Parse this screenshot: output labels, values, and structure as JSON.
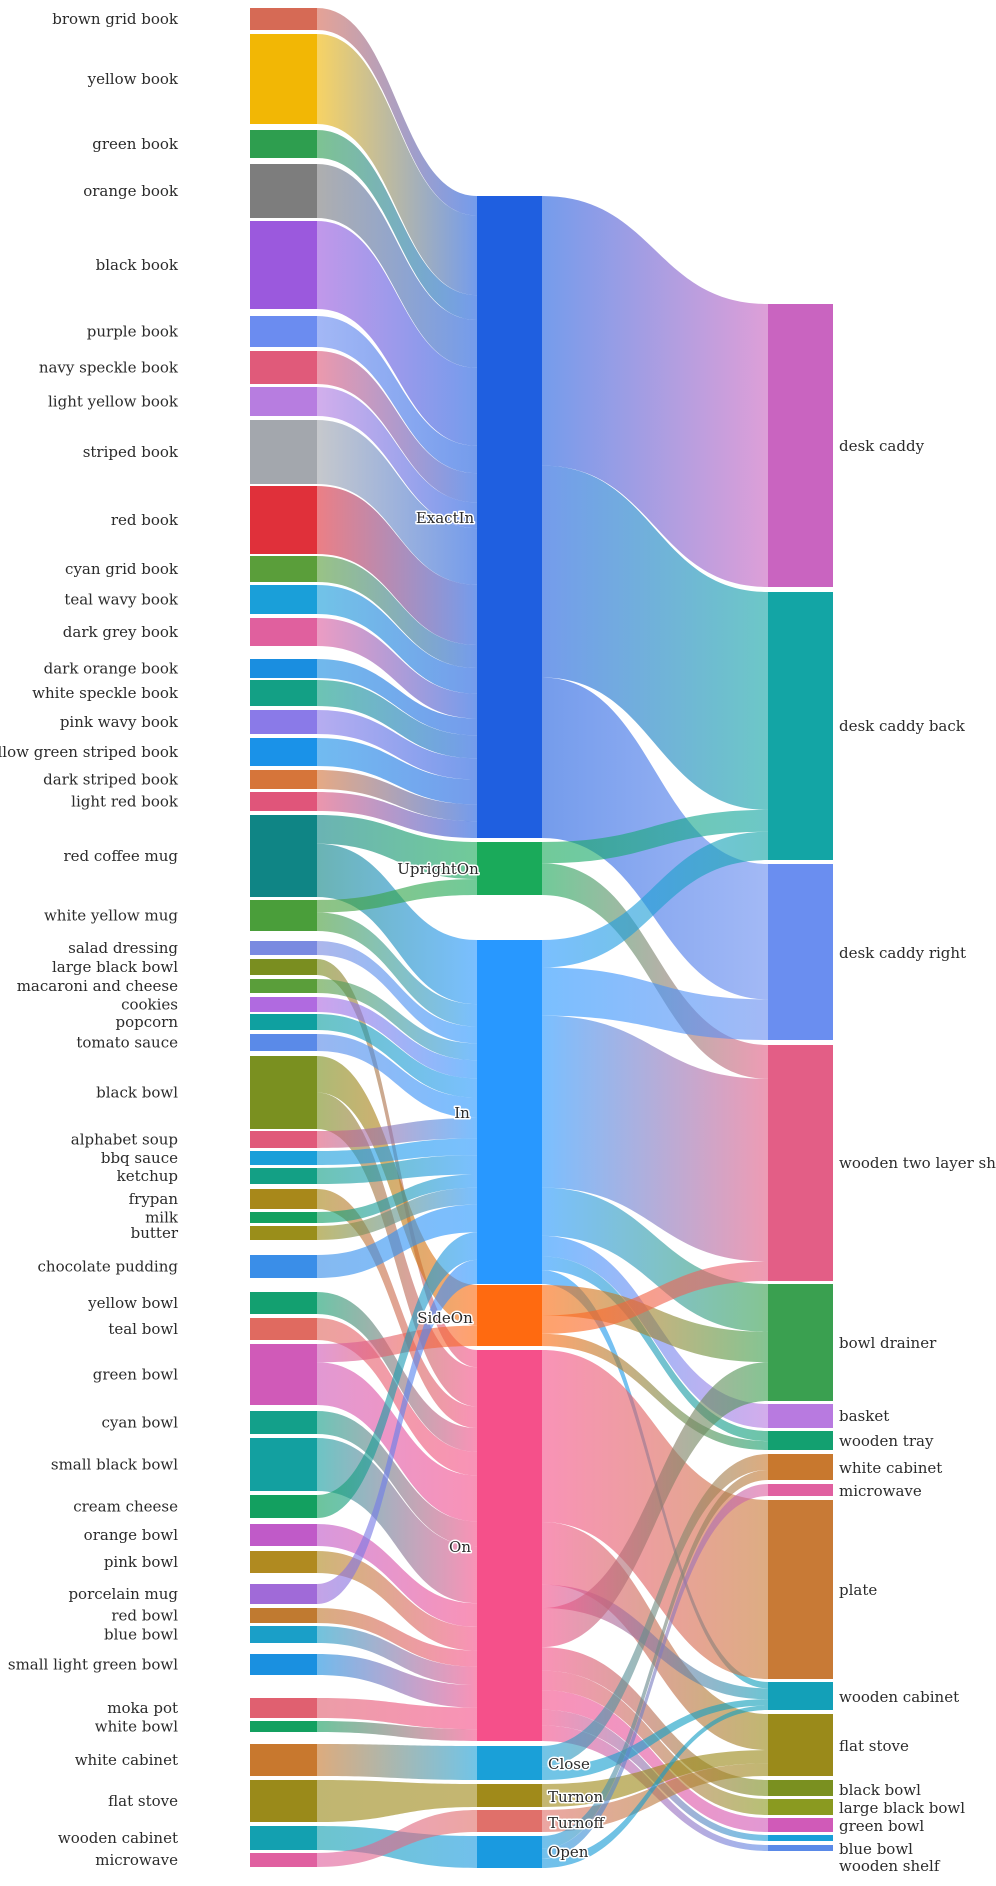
{
  "chart_data": {
    "type": "sankey",
    "columns": {
      "objects": [
        {
          "name": "brown grid book",
          "color": "#d66a55"
        },
        {
          "name": "yellow book",
          "color": "#f2b705"
        },
        {
          "name": "green book",
          "color": "#2e9e4f"
        },
        {
          "name": "orange book",
          "color": "#7d7d7d"
        },
        {
          "name": "black book",
          "color": "#9b59dd"
        },
        {
          "name": "purple book",
          "color": "#6b8cf0"
        },
        {
          "name": "navy speckle book",
          "color": "#e05a7a"
        },
        {
          "name": "light yellow book",
          "color": "#b77de0"
        },
        {
          "name": "striped book",
          "color": "#a3a7ad"
        },
        {
          "name": "red book",
          "color": "#e0303a"
        },
        {
          "name": "cyan grid book",
          "color": "#5a9e3a"
        },
        {
          "name": "teal wavy book",
          "color": "#1a9fd9"
        },
        {
          "name": "dark grey book",
          "color": "#e0609e"
        },
        {
          "name": "dark orange book",
          "color": "#1a8ee0"
        },
        {
          "name": "white speckle book",
          "color": "#13a085"
        },
        {
          "name": "pink wavy book",
          "color": "#8a7ae8"
        },
        {
          "name": "yellow green striped book",
          "color": "#1a92e8"
        },
        {
          "name": "dark striped book",
          "color": "#d6753a"
        },
        {
          "name": "light red book",
          "color": "#e0557a"
        },
        {
          "name": "red coffee mug",
          "color": "#0f8585"
        },
        {
          "name": "white yellow mug",
          "color": "#4a9e3a"
        },
        {
          "name": "salad dressing",
          "color": "#7a8ae0"
        },
        {
          "name": "large black bowl",
          "color": "#7a8e20"
        },
        {
          "name": "macaroni and cheese",
          "color": "#5a9e3a"
        },
        {
          "name": "cookies",
          "color": "#b06ae0"
        },
        {
          "name": "popcorn",
          "color": "#0fa0a0"
        },
        {
          "name": "tomato sauce",
          "color": "#5a8ae8"
        },
        {
          "name": "black bowl",
          "color": "#7a9020"
        },
        {
          "name": "alphabet soup",
          "color": "#e05a7a"
        },
        {
          "name": "bbq sauce",
          "color": "#1a9fd9"
        },
        {
          "name": "ketchup",
          "color": "#13a085"
        },
        {
          "name": "frypan",
          "color": "#a8881a"
        },
        {
          "name": "milk",
          "color": "#13a060"
        },
        {
          "name": "butter",
          "color": "#9a8e1a"
        },
        {
          "name": "chocolate pudding",
          "color": "#3a8ee8"
        },
        {
          "name": "yellow bowl",
          "color": "#13a070"
        },
        {
          "name": "teal bowl",
          "color": "#e06a60"
        },
        {
          "name": "green bowl",
          "color": "#d05ab8"
        },
        {
          "name": "cyan bowl",
          "color": "#13a08a"
        },
        {
          "name": "small black bowl",
          "color": "#13a0a0"
        },
        {
          "name": "cream cheese",
          "color": "#13a060"
        },
        {
          "name": "orange bowl",
          "color": "#c05ac8"
        },
        {
          "name": "pink bowl",
          "color": "#b08a20"
        },
        {
          "name": "porcelain mug",
          "color": "#a06ad8"
        },
        {
          "name": "red bowl",
          "color": "#c07a30"
        },
        {
          "name": "blue bowl",
          "color": "#1a9fc8"
        },
        {
          "name": "small light green bowl",
          "color": "#1a90e0"
        },
        {
          "name": "moka pot",
          "color": "#e06070"
        },
        {
          "name": "white bowl",
          "color": "#13a060"
        },
        {
          "name": "white cabinet",
          "color": "#c8782e"
        },
        {
          "name": "flat stove",
          "color": "#9a8a1a"
        },
        {
          "name": "wooden cabinet",
          "color": "#13a0b0"
        },
        {
          "name": "microwave",
          "color": "#e060a0"
        }
      ],
      "relations": [
        {
          "name": "ExactIn",
          "color": "#1f5fe0"
        },
        {
          "name": "UprightOn",
          "color": "#1aaa5a"
        },
        {
          "name": "In",
          "color": "#2898ff"
        },
        {
          "name": "SideOn",
          "color": "#ff6a10"
        },
        {
          "name": "On",
          "color": "#f5508a"
        },
        {
          "name": "Close",
          "color": "#1aa0d8"
        },
        {
          "name": "Turnon",
          "color": "#a08a1a"
        },
        {
          "name": "Turnoff",
          "color": "#e0706a"
        },
        {
          "name": "Open",
          "color": "#1a9ae0"
        }
      ],
      "targets": [
        {
          "name": "desk caddy",
          "color": "#c964c0"
        },
        {
          "name": "desk caddy back",
          "color": "#13a5a5"
        },
        {
          "name": "desk caddy right",
          "color": "#6a8ef0"
        },
        {
          "name": "wooden two layer shelf",
          "color": "#e35e86"
        },
        {
          "name": "bowl drainer",
          "color": "#3aa050"
        },
        {
          "name": "basket",
          "color": "#b87ae0"
        },
        {
          "name": "wooden tray",
          "color": "#13a070"
        },
        {
          "name": "white cabinet",
          "color": "#c8782e"
        },
        {
          "name": "microwave",
          "color": "#e060a0"
        },
        {
          "name": "plate",
          "color": "#c87a36"
        },
        {
          "name": "wooden cabinet",
          "color": "#13a0b8"
        },
        {
          "name": "flat stove",
          "color": "#9a8a1a"
        },
        {
          "name": "black bowl",
          "color": "#7a9020"
        },
        {
          "name": "large black bowl",
          "color": "#8a9a20"
        },
        {
          "name": "green bowl",
          "color": "#d05ab8"
        },
        {
          "name": "blue bowl",
          "color": "#1a9fd9"
        },
        {
          "name": "wooden shelf",
          "color": "#5a8ae8"
        }
      ]
    }
  }
}
